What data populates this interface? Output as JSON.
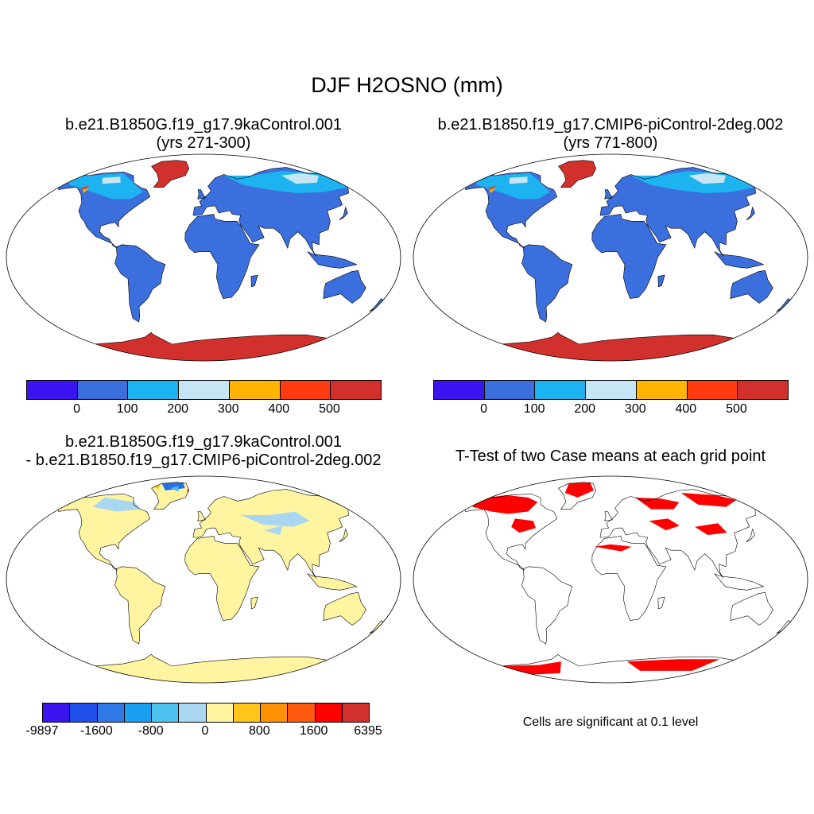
{
  "figure": {
    "title": "DJF H2OSNO (mm)"
  },
  "panels": [
    {
      "id": "case1",
      "title_line1": "b.e21.B1850G.f19_g17.9kaControl.001",
      "title_line2": "(yrs 271-300)",
      "map_kind": "snow-depth",
      "land_color": "#3b6fdd",
      "snow_colors": [
        "#1cb3f0",
        "#c6e6f5",
        "#d2302c",
        "#ff3c10",
        "#ffb400"
      ]
    },
    {
      "id": "case2",
      "title_line1": "b.e21.B1850.f19_g17.CMIP6-piControl-2deg.002",
      "title_line2": "(yrs 771-800)",
      "map_kind": "snow-depth",
      "land_color": "#3b6fdd",
      "snow_colors": [
        "#1cb3f0",
        "#c6e6f5",
        "#d2302c",
        "#ff3c10",
        "#ffb400"
      ]
    },
    {
      "id": "diff",
      "title_line1": "b.e21.B1850G.f19_g17.9kaControl.001",
      "title_line2": "- b.e21.B1850.f19_g17.CMIP6-piControl-2deg.002",
      "map_kind": "difference",
      "land_color": "#fff5a0",
      "snow_colors": [
        "#a9d6f0",
        "#4fb8f0",
        "#2470e8",
        "#ffc51a",
        "#ff3c10"
      ]
    },
    {
      "id": "ttest",
      "title_line1": "T-Test of two Case means at each grid point",
      "map_kind": "significance",
      "land_color": "#ffffff",
      "snow_colors": [
        "#ff0000"
      ]
    }
  ],
  "colorbars": {
    "case": {
      "colors": [
        "#3b14f0",
        "#3b6fdd",
        "#1cb3f0",
        "#c6e6f5",
        "#ffb400",
        "#ff3c10",
        "#d2302c"
      ],
      "labels": [
        "0",
        "100",
        "200",
        "300",
        "400",
        "500"
      ]
    },
    "diff": {
      "colors": [
        "#3b14f0",
        "#1f4fe8",
        "#2f7ae6",
        "#1aa0f0",
        "#4fc3f0",
        "#a9d6f0",
        "#fff5a0",
        "#ffc51a",
        "#ff9100",
        "#ff5a10",
        "#ff0000",
        "#d2302c"
      ],
      "labels": [
        "-9897",
        "-1600",
        "-800",
        "0",
        "800",
        "1600",
        "6395"
      ]
    }
  },
  "significance_note": "Cells are significant at 0.1 level"
}
